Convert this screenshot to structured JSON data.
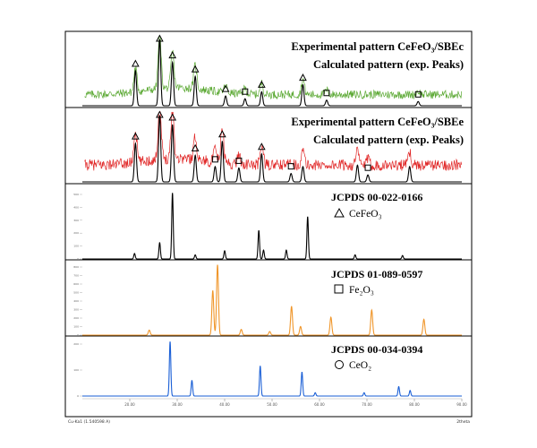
{
  "chart_data": [
    {
      "type": "line",
      "panel_id": "exp_c",
      "labels": [
        "Experimental pattern CeFeO₃/SBEc",
        "Calculated pattern (exp. Peaks)"
      ],
      "experimental_color": "#5aa832",
      "calculated_color": "#000000",
      "calc_peaks": [
        {
          "x": 21.2,
          "h": 0.5
        },
        {
          "x": 26.3,
          "h": 0.95
        },
        {
          "x": 29.0,
          "h": 0.62
        },
        {
          "x": 33.8,
          "h": 0.42
        },
        {
          "x": 40.2,
          "h": 0.14
        },
        {
          "x": 44.3,
          "h": 0.1
        },
        {
          "x": 47.8,
          "h": 0.2
        },
        {
          "x": 56.5,
          "h": 0.3
        },
        {
          "x": 61.5,
          "h": 0.08
        },
        {
          "x": 80.8,
          "h": 0.06
        }
      ],
      "exp_peaks": [
        {
          "x": 21.2,
          "h": 0.34
        },
        {
          "x": 26.3,
          "h": 0.78
        },
        {
          "x": 29.0,
          "h": 0.52
        },
        {
          "x": 33.8,
          "h": 0.34
        },
        {
          "x": 40.2,
          "h": 0.1
        },
        {
          "x": 44.3,
          "h": 0.08
        },
        {
          "x": 47.8,
          "h": 0.16
        },
        {
          "x": 56.5,
          "h": 0.22
        },
        {
          "x": 61.5,
          "h": 0.06
        },
        {
          "x": 80.8,
          "h": 0.05
        }
      ],
      "markers": [
        {
          "x": 21.2,
          "shape": "triangle"
        },
        {
          "x": 26.3,
          "shape": "triangle"
        },
        {
          "x": 29.0,
          "shape": "triangle"
        },
        {
          "x": 33.8,
          "shape": "triangle"
        },
        {
          "x": 40.2,
          "shape": "triangle"
        },
        {
          "x": 44.3,
          "shape": "square"
        },
        {
          "x": 47.8,
          "shape": "triangle"
        },
        {
          "x": 56.5,
          "shape": "triangle"
        },
        {
          "x": 61.5,
          "shape": "square"
        },
        {
          "x": 80.8,
          "shape": "square"
        }
      ]
    },
    {
      "type": "line",
      "panel_id": "exp_e",
      "labels": [
        "Experimental pattern CeFeO₃/SBEe",
        "Calculated pattern (exp. Peaks)"
      ],
      "experimental_color": "#e02424",
      "calculated_color": "#000000",
      "calc_peaks": [
        {
          "x": 21.2,
          "h": 0.55
        },
        {
          "x": 26.3,
          "h": 0.95
        },
        {
          "x": 29.0,
          "h": 0.82
        },
        {
          "x": 33.8,
          "h": 0.38
        },
        {
          "x": 38.0,
          "h": 0.22
        },
        {
          "x": 39.5,
          "h": 0.58
        },
        {
          "x": 43.0,
          "h": 0.2
        },
        {
          "x": 47.8,
          "h": 0.4
        },
        {
          "x": 54.0,
          "h": 0.12
        },
        {
          "x": 56.5,
          "h": 0.22
        },
        {
          "x": 68.0,
          "h": 0.24
        },
        {
          "x": 70.2,
          "h": 0.1
        },
        {
          "x": 79.0,
          "h": 0.22
        }
      ],
      "exp_peaks": [
        {
          "x": 21.2,
          "h": 0.45
        },
        {
          "x": 26.3,
          "h": 0.8
        },
        {
          "x": 29.0,
          "h": 0.7
        },
        {
          "x": 33.8,
          "h": 0.32
        },
        {
          "x": 38.0,
          "h": 0.18
        },
        {
          "x": 39.5,
          "h": 0.48
        },
        {
          "x": 43.0,
          "h": 0.14
        },
        {
          "x": 47.8,
          "h": 0.3
        },
        {
          "x": 54.0,
          "h": 0.1
        },
        {
          "x": 56.5,
          "h": 0.2
        },
        {
          "x": 68.0,
          "h": 0.2
        },
        {
          "x": 70.2,
          "h": 0.08
        },
        {
          "x": 79.0,
          "h": 0.18
        }
      ],
      "markers": [
        {
          "x": 21.2,
          "shape": "triangle"
        },
        {
          "x": 26.3,
          "shape": "triangle"
        },
        {
          "x": 29.0,
          "shape": "triangle"
        },
        {
          "x": 33.8,
          "shape": "triangle"
        },
        {
          "x": 38.0,
          "shape": "square"
        },
        {
          "x": 39.5,
          "shape": "triangle"
        },
        {
          "x": 43.0,
          "shape": "square"
        },
        {
          "x": 47.8,
          "shape": "triangle"
        },
        {
          "x": 54.0,
          "shape": "square"
        },
        {
          "x": 70.2,
          "shape": "square"
        }
      ]
    },
    {
      "type": "line",
      "panel_id": "ref_cefeo3",
      "labels": [
        "JCPDS 00-022-0166",
        "CeFeO₃"
      ],
      "legend_marker": "triangle",
      "color": "#000000",
      "ytick_labels": [
        "0",
        "100",
        "200",
        "300",
        "400",
        "500"
      ],
      "peaks": [
        {
          "x": 21.0,
          "h": 0.08
        },
        {
          "x": 26.3,
          "h": 0.24
        },
        {
          "x": 29.0,
          "h": 0.97
        },
        {
          "x": 33.8,
          "h": 0.06
        },
        {
          "x": 40.0,
          "h": 0.12
        },
        {
          "x": 47.2,
          "h": 0.42
        },
        {
          "x": 48.2,
          "h": 0.13
        },
        {
          "x": 53.0,
          "h": 0.13
        },
        {
          "x": 57.5,
          "h": 0.62
        },
        {
          "x": 67.5,
          "h": 0.06
        },
        {
          "x": 77.5,
          "h": 0.05
        }
      ]
    },
    {
      "type": "line",
      "panel_id": "ref_fe2o3",
      "labels": [
        "JCPDS 01-089-0597",
        "Fe₂O₃"
      ],
      "legend_marker": "square",
      "color": "#f0962a",
      "ytick_labels": [
        "0",
        "100",
        "200",
        "300",
        "400",
        "500",
        "600",
        "700",
        "800"
      ],
      "peaks": [
        {
          "x": 24.1,
          "h": 0.07
        },
        {
          "x": 37.5,
          "h": 0.62
        },
        {
          "x": 38.5,
          "h": 0.98
        },
        {
          "x": 43.5,
          "h": 0.08
        },
        {
          "x": 49.5,
          "h": 0.05
        },
        {
          "x": 54.1,
          "h": 0.4
        },
        {
          "x": 56.0,
          "h": 0.12
        },
        {
          "x": 62.4,
          "h": 0.25
        },
        {
          "x": 71.0,
          "h": 0.35
        },
        {
          "x": 82.0,
          "h": 0.22
        }
      ]
    },
    {
      "type": "line",
      "panel_id": "ref_ceo2",
      "labels": [
        "JCPDS 00-034-0394",
        "CeO₂"
      ],
      "legend_marker": "circle",
      "color": "#1a5fd6",
      "ytick_labels": [
        "0",
        "100",
        "200"
      ],
      "xtick_labels": [
        "20.00",
        "30.00",
        "40.00",
        "50.00",
        "60.00",
        "70.00",
        "80.00",
        "90.00"
      ],
      "xlim": [
        10,
        90
      ],
      "x_unit_label": "2theta",
      "footer_label": "Cu-Ka1 (1.540598 A)",
      "peaks": [
        {
          "x": 28.5,
          "h": 0.98
        },
        {
          "x": 33.1,
          "h": 0.28
        },
        {
          "x": 47.5,
          "h": 0.54
        },
        {
          "x": 56.3,
          "h": 0.43
        },
        {
          "x": 59.1,
          "h": 0.06
        },
        {
          "x": 69.4,
          "h": 0.06
        },
        {
          "x": 76.7,
          "h": 0.17
        },
        {
          "x": 79.1,
          "h": 0.1
        }
      ]
    }
  ]
}
